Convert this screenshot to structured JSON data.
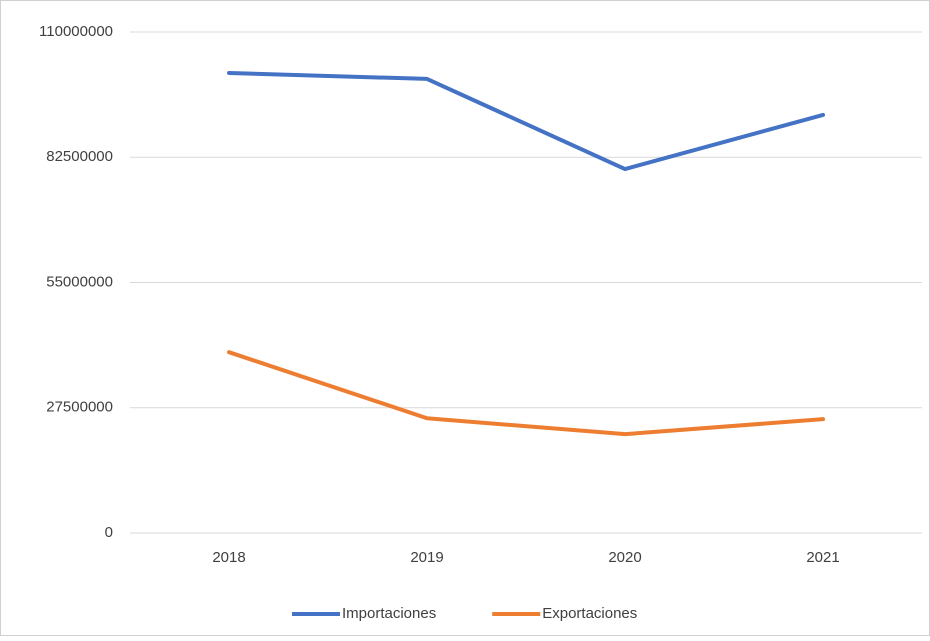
{
  "chart_data": {
    "type": "line",
    "categories": [
      "2018",
      "2019",
      "2020",
      "2021"
    ],
    "series": [
      {
        "name": "Importaciones",
        "color": "#4472c4",
        "values": [
          101000000,
          99700000,
          79900000,
          91800000
        ]
      },
      {
        "name": "Exportaciones",
        "color": "#ed7d31",
        "values": [
          39700000,
          25200000,
          21700000,
          25000000
        ]
      }
    ],
    "ylim": [
      0,
      110000000
    ],
    "yticks": [
      0,
      27500000,
      55000000,
      82500000,
      110000000
    ],
    "grid": true,
    "legend": "bottom"
  }
}
